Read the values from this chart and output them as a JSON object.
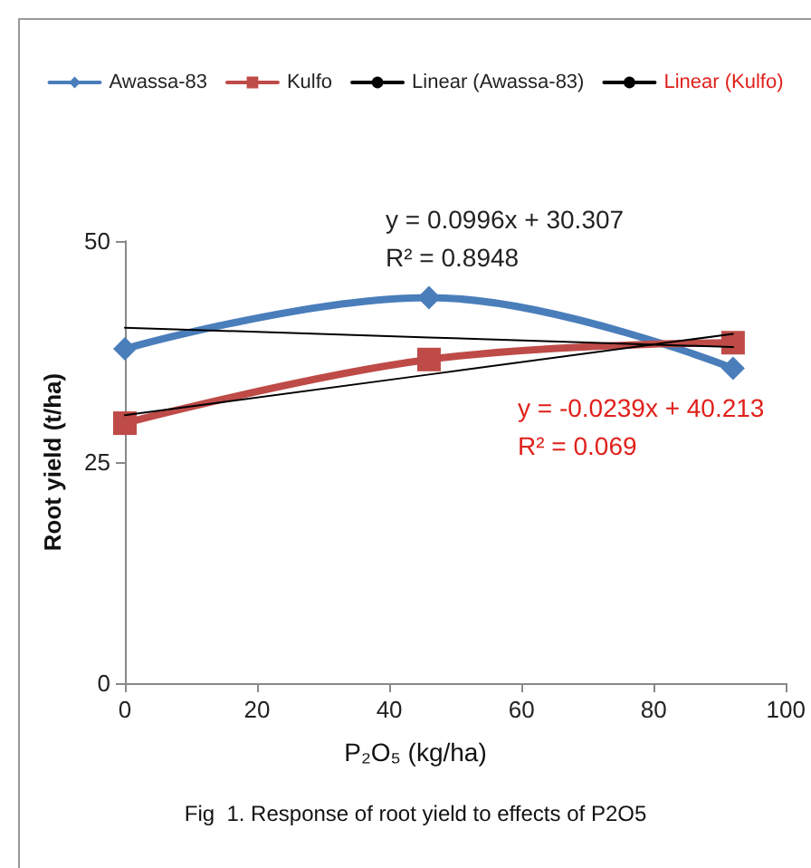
{
  "chart_data": {
    "type": "line",
    "title": "Fig  1. Response of root yield to effects of P2O5",
    "xlabel": "P₂O₅ (kg/ha)",
    "ylabel": "Root yield (t/ha)",
    "x": [
      0,
      46,
      92
    ],
    "series": [
      {
        "name": "Awassa-83",
        "color": "#4a7ebb",
        "marker": "diamond",
        "values": [
          37.8,
          43.6,
          35.6
        ]
      },
      {
        "name": "Kulfo",
        "color": "#be4b48",
        "marker": "square",
        "values": [
          29.4,
          36.6,
          38.5
        ]
      },
      {
        "name": "Linear (Awassa-83)",
        "color": "#000000",
        "marker": "none",
        "values": [
          40.2,
          39.1,
          38.0
        ]
      },
      {
        "name": "Linear (Kulfo)",
        "color": "#000000",
        "marker": "none",
        "values": [
          30.3,
          34.9,
          39.5
        ]
      }
    ],
    "annotations": [
      "y = 0.0996x + 30.307",
      "R² = 0.8948",
      "y = -0.0239x + 40.213",
      "R² = 0.069"
    ],
    "xlim": [
      0,
      100
    ],
    "xticks": [
      0,
      20,
      40,
      60,
      80,
      100
    ],
    "ylim": [
      0,
      50
    ],
    "yticks": [
      0,
      25,
      50
    ],
    "grid": false,
    "legend": "top",
    "line_style": "solid"
  }
}
